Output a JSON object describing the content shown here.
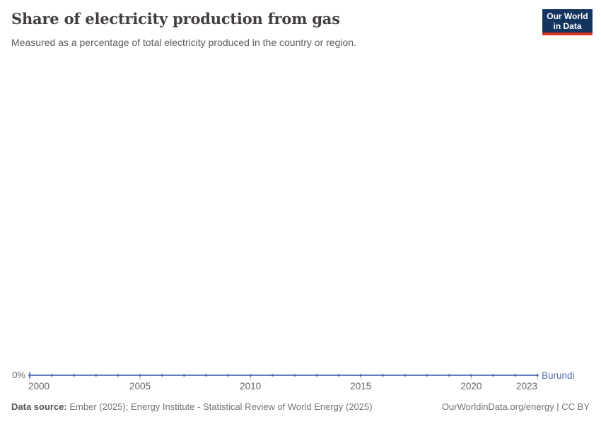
{
  "header": {
    "title": "Share of electricity production from gas",
    "subtitle": "Measured as a percentage of total electricity produced in the country or region.",
    "logo": {
      "line1": "Our World",
      "line2": "in Data"
    }
  },
  "chart_data": {
    "type": "line",
    "title": "Share of electricity production from gas",
    "subtitle": "Measured as a percentage of total electricity produced in the country or region.",
    "series": [
      {
        "name": "Burundi",
        "color": "#4a6fb0",
        "x": [
          2000,
          2001,
          2002,
          2003,
          2004,
          2005,
          2006,
          2007,
          2008,
          2009,
          2010,
          2011,
          2012,
          2013,
          2014,
          2015,
          2016,
          2017,
          2018,
          2019,
          2020,
          2021,
          2022,
          2023
        ],
        "values": [
          0,
          0,
          0,
          0,
          0,
          0,
          0,
          0,
          0,
          0,
          0,
          0,
          0,
          0,
          0,
          0,
          0,
          0,
          0,
          0,
          0,
          0,
          0,
          0
        ]
      }
    ],
    "x_ticks": [
      2000,
      2005,
      2010,
      2015,
      2020,
      2023
    ],
    "y_ticks": [
      {
        "value": 0,
        "label": "0%"
      }
    ],
    "xlim": [
      2000,
      2023
    ],
    "ylim": [
      0,
      0
    ],
    "grid": false,
    "legend_position": "end-of-line",
    "unit": "%"
  },
  "footer": {
    "datasource_label": "Data source:",
    "datasource_text": " Ember (2025); Energy Institute - Statistical Review of World Energy (2025)",
    "credit": "OurWorldinData.org/energy | CC BY"
  },
  "colors": {
    "line": "#4a6fb0",
    "entity_label": "#4a6fb0",
    "axis_text": "#636363",
    "axis_tick": "#b3b3b3",
    "logo_bg": "#14355f",
    "logo_stripe": "#dc3222"
  }
}
